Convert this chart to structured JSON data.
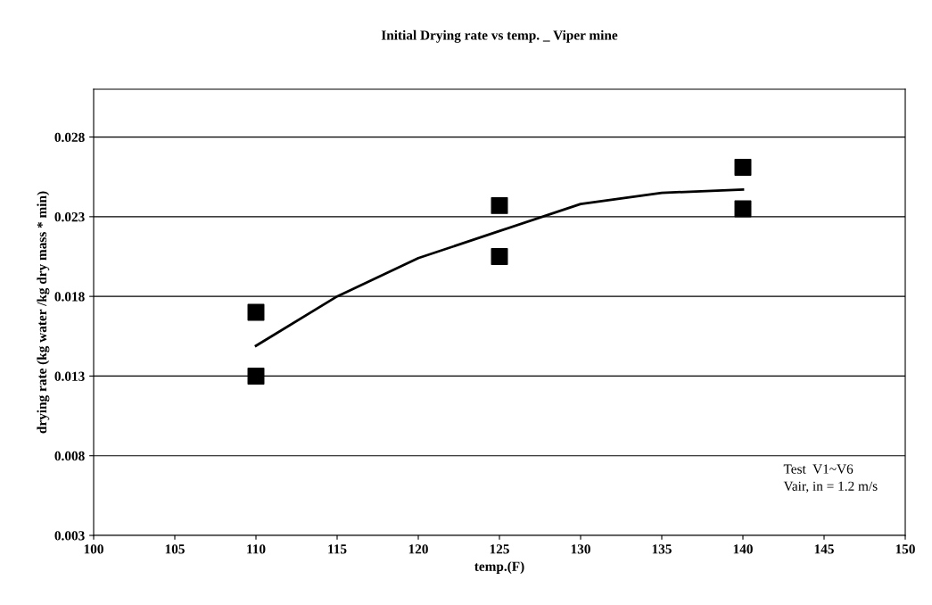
{
  "chart_data": {
    "type": "scatter",
    "title": "Initial Drying rate vs temp. _ Viper mine",
    "xlabel": "temp.(F)",
    "ylabel": "drying rate (kg water /kg dry mass * min)",
    "series": [
      {
        "color": "#000000",
        "marker": "square",
        "x": [
          110,
          110,
          125,
          125,
          140,
          140
        ],
        "values": [
          0.017,
          0.013,
          0.0237,
          0.0205,
          0.0261,
          0.0235
        ]
      },
      {
        "type": "line",
        "color": "#000000",
        "marker": "none",
        "x": [
          110,
          115,
          120,
          125,
          130,
          135,
          140
        ],
        "values": [
          0.0149,
          0.018,
          0.0204,
          0.0221,
          0.0238,
          0.0245,
          0.0247
        ]
      }
    ],
    "xlim": [
      100,
      150
    ],
    "xticks": [
      100,
      105,
      110,
      115,
      120,
      125,
      130,
      135,
      140,
      145,
      150
    ],
    "ylim": [
      0.003,
      0.031
    ],
    "yticks": [
      0.003,
      0.008,
      0.013,
      0.018,
      0.023,
      0.028
    ],
    "grid": "y",
    "legend": false,
    "annotations": [
      "Test  V1~V6\nVair, in = 1.2 m/s"
    ]
  }
}
